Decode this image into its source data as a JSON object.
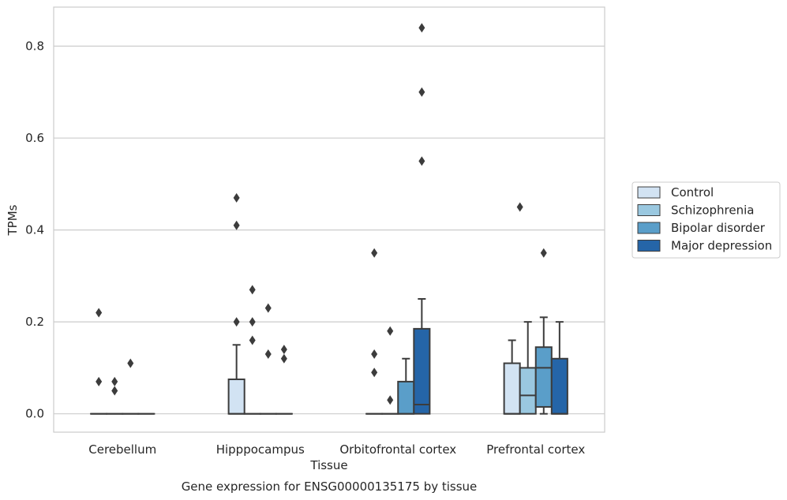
{
  "chart_data": {
    "type": "box",
    "title": "",
    "caption": "Gene expression for ENSG00000135175 by tissue",
    "xlabel": "Tissue",
    "ylabel": "TPMs",
    "ylim": [
      -0.04,
      0.885
    ],
    "yticks": [
      0.0,
      0.2,
      0.4,
      0.6,
      0.8
    ],
    "ytick_labels": [
      "0.0",
      "0.2",
      "0.4",
      "0.6",
      "0.8"
    ],
    "grid": "horizontal",
    "legend_position": "right",
    "categories": [
      "Cerebellum",
      "Hipppocampus",
      "Orbitofrontal cortex",
      "Prefrontal cortex"
    ],
    "series": [
      {
        "name": "Control",
        "color": "#d2e3f3",
        "boxes": [
          {
            "min": 0,
            "q1": 0,
            "median": 0,
            "q3": 0,
            "max": 0,
            "outliers": [
              0.22,
              0.07
            ]
          },
          {
            "min": 0,
            "q1": 0,
            "median": 0,
            "q3": 0.075,
            "max": 0.15,
            "outliers": [
              0.47,
              0.41,
              0.2
            ]
          },
          {
            "min": 0,
            "q1": 0,
            "median": 0,
            "q3": 0,
            "max": 0,
            "outliers": [
              0.35,
              0.13,
              0.09
            ]
          },
          {
            "min": 0,
            "q1": 0,
            "median": 0,
            "q3": 0.11,
            "max": 0.16,
            "outliers": []
          }
        ]
      },
      {
        "name": "Schizophrenia",
        "color": "#9ac8e0",
        "boxes": [
          {
            "min": 0,
            "q1": 0,
            "median": 0,
            "q3": 0,
            "max": 0,
            "outliers": [
              0.07,
              0.05
            ]
          },
          {
            "min": 0,
            "q1": 0,
            "median": 0,
            "q3": 0,
            "max": 0,
            "outliers": [
              0.27,
              0.2,
              0.16
            ]
          },
          {
            "min": 0,
            "q1": 0,
            "median": 0,
            "q3": 0,
            "max": 0,
            "outliers": [
              0.18,
              0.03
            ]
          },
          {
            "min": 0,
            "q1": 0,
            "median": 0.04,
            "q3": 0.1,
            "max": 0.2,
            "outliers": []
          }
        ]
      },
      {
        "name": "Bipolar disorder",
        "color": "#5a9ec9",
        "boxes": [
          {
            "min": 0,
            "q1": 0,
            "median": 0,
            "q3": 0,
            "max": 0,
            "outliers": [
              0.11
            ]
          },
          {
            "min": 0,
            "q1": 0,
            "median": 0,
            "q3": 0,
            "max": 0,
            "outliers": [
              0.23,
              0.13
            ]
          },
          {
            "min": 0,
            "q1": 0,
            "median": 0,
            "q3": 0.07,
            "max": 0.12,
            "outliers": []
          },
          {
            "min": 0,
            "q1": 0.015,
            "median": 0.1,
            "q3": 0.145,
            "max": 0.21,
            "outliers": [
              0.35
            ]
          }
        ]
      },
      {
        "name": "Major depression",
        "color": "#2565a8",
        "boxes": [
          {
            "min": 0,
            "q1": 0,
            "median": 0,
            "q3": 0,
            "max": 0,
            "outliers": []
          },
          {
            "min": 0,
            "q1": 0,
            "median": 0,
            "q3": 0,
            "max": 0,
            "outliers": [
              0.14,
              0.12
            ]
          },
          {
            "min": 0,
            "q1": 0,
            "median": 0.02,
            "q3": 0.185,
            "max": 0.25,
            "outliers": [
              0.84,
              0.7,
              0.55
            ]
          },
          {
            "min": 0,
            "q1": 0,
            "median": 0,
            "q3": 0.12,
            "max": 0.2,
            "outliers": []
          }
        ]
      }
    ],
    "control_extra_outliers": {
      "Prefrontal cortex": [
        0.45
      ]
    }
  }
}
